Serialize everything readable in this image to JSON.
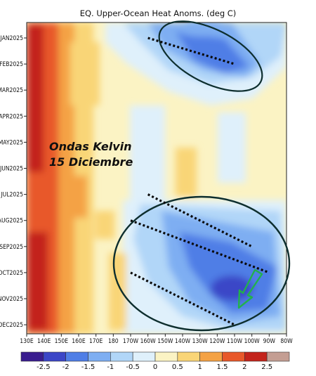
{
  "chart_data": {
    "type": "heatmap",
    "title": "EQ. Upper-Ocean Heat Anoms. (deg C)",
    "x_ticks": [
      "130E",
      "140E",
      "150E",
      "160E",
      "170E",
      "180",
      "170W",
      "160W",
      "150W",
      "140W",
      "130W",
      "120W",
      "110W",
      "100W",
      "90W",
      "80W"
    ],
    "y_ticks": [
      "JAN2025",
      "FEB2025",
      "MAR2025",
      "APR2025",
      "MAY2025",
      "JUN2025",
      "JUL2025",
      "AUG2025",
      "SEP2025",
      "OCT2025",
      "NOV2025",
      "DEC2025"
    ],
    "colorbar_ticks": [
      "-2.5",
      "-2",
      "-1.5",
      "-1",
      "-0.5",
      "0",
      "0.5",
      "1",
      "1.5",
      "2",
      "2.5"
    ],
    "colorbar_bins": [
      {
        "range": "<-2.5",
        "color": "#3a1d8f"
      },
      {
        "range": "-2.5:-2",
        "color": "#3b46c7"
      },
      {
        "range": "-2:-1.5",
        "color": "#4f7ee6"
      },
      {
        "range": "-1.5:-1",
        "color": "#7eaef2"
      },
      {
        "range": "-1:-0.5",
        "color": "#b1d6f8"
      },
      {
        "range": "-0.5:0",
        "color": "#dff0fb"
      },
      {
        "range": "0:0.5",
        "color": "#fbf3c4"
      },
      {
        "range": "0.5:1",
        "color": "#f9d577"
      },
      {
        "range": "1:1.5",
        "color": "#f4a245"
      },
      {
        "range": "1.5:2",
        "color": "#e8582a"
      },
      {
        "range": "2:2.5",
        "color": "#c3231b"
      },
      {
        "range": ">2.5",
        "color": "#c49e93"
      }
    ],
    "annotations": {
      "text_line1": "Ondas Kelvin",
      "text_line2": "15 Diciembre"
    },
    "kelvin_waves": [
      {
        "start": {
          "lon": "160W",
          "month": "JAN2025"
        },
        "end": {
          "lon": "110W",
          "month": "FEB2025"
        }
      },
      {
        "start": {
          "lon": "160W",
          "month": "JUL2025"
        },
        "end": {
          "lon": "100W",
          "month": "SEP2025"
        }
      },
      {
        "start": {
          "lon": "170W",
          "month": "AUG2025"
        },
        "end": {
          "lon": "90W",
          "month": "OCT2025"
        }
      },
      {
        "start": {
          "lon": "170W",
          "month": "OCT2025"
        },
        "end": {
          "lon": "110W",
          "month": "DEC2025"
        }
      }
    ]
  }
}
